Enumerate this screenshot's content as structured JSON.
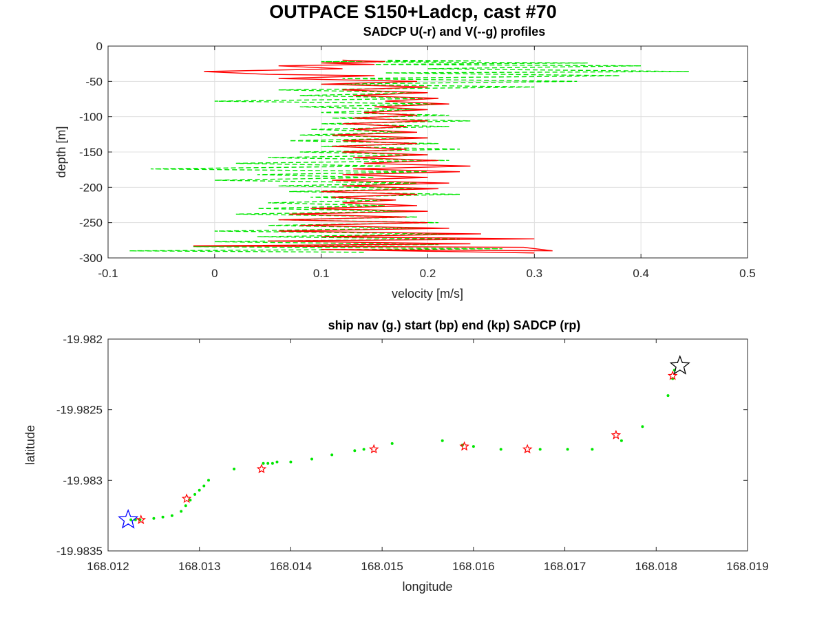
{
  "figure": {
    "title": "OUTPACE S150+Ladcp, cast #70"
  },
  "chart_data": [
    {
      "type": "line",
      "title": "SADCP U(-r) and V(--g) profiles",
      "xlabel": "velocity [m/s]",
      "ylabel": "depth [m]",
      "xlim": [
        -0.1,
        0.5
      ],
      "ylim": [
        -300,
        0
      ],
      "xticks": [
        "-0.1",
        "0",
        "0.1",
        "0.2",
        "0.3",
        "0.4",
        "0.5"
      ],
      "yticks": [
        "0",
        "-50",
        "-100",
        "-150",
        "-200",
        "-250",
        "-300"
      ],
      "grid": true,
      "series": [
        {
          "key": "U",
          "color": "#ff0000",
          "style": "solid",
          "points": [
            [
              0.3,
              -293
            ],
            [
              0.1,
              -288
            ],
            [
              0.317,
              -290
            ],
            [
              0.29,
              -285
            ],
            [
              -0.02,
              -283
            ],
            [
              0.24,
              -280
            ],
            [
              0.05,
              -276
            ],
            [
              0.3,
              -273
            ],
            [
              0.1,
              -270
            ],
            [
              0.25,
              -266
            ],
            [
              0.06,
              -262
            ],
            [
              0.22,
              -258
            ],
            [
              0.08,
              -254
            ],
            [
              0.2,
              -250
            ],
            [
              0.06,
              -246
            ],
            [
              0.18,
              -242
            ],
            [
              0.07,
              -238
            ],
            [
              0.2,
              -234
            ],
            [
              0.09,
              -230
            ],
            [
              0.19,
              -226
            ],
            [
              0.12,
              -222
            ],
            [
              0.17,
              -218
            ],
            [
              0.11,
              -214
            ],
            [
              0.19,
              -210
            ],
            [
              0.1,
              -206
            ],
            [
              0.21,
              -202
            ],
            [
              0.12,
              -198
            ],
            [
              0.22,
              -194
            ],
            [
              0.11,
              -190
            ],
            [
              0.2,
              -186
            ],
            [
              0.12,
              -182
            ],
            [
              0.23,
              -178
            ],
            [
              0.13,
              -174
            ],
            [
              0.24,
              -170
            ],
            [
              0.14,
              -166
            ],
            [
              0.21,
              -162
            ],
            [
              0.13,
              -158
            ],
            [
              0.2,
              -154
            ],
            [
              0.12,
              -150
            ],
            [
              0.18,
              -146
            ],
            [
              0.11,
              -142
            ],
            [
              0.19,
              -138
            ],
            [
              0.12,
              -134
            ],
            [
              0.2,
              -130
            ],
            [
              0.11,
              -126
            ],
            [
              0.19,
              -122
            ],
            [
              0.13,
              -118
            ],
            [
              0.18,
              -114
            ],
            [
              0.12,
              -110
            ],
            [
              0.2,
              -106
            ],
            [
              0.13,
              -102
            ],
            [
              0.19,
              -98
            ],
            [
              0.14,
              -94
            ],
            [
              0.2,
              -90
            ],
            [
              0.15,
              -86
            ],
            [
              0.22,
              -82
            ],
            [
              0.16,
              -78
            ],
            [
              0.21,
              -74
            ],
            [
              0.13,
              -70
            ],
            [
              0.2,
              -66
            ],
            [
              0.12,
              -62
            ],
            [
              0.2,
              -58
            ],
            [
              0.1,
              -54
            ],
            [
              0.19,
              -50
            ],
            [
              0.06,
              -46
            ],
            [
              0.15,
              -42
            ],
            [
              0.05,
              -40
            ],
            [
              -0.01,
              -36
            ],
            [
              0.12,
              -32
            ],
            [
              0.06,
              -28
            ],
            [
              0.15,
              -26
            ],
            [
              0.1,
              -24
            ],
            [
              0.16,
              -22
            ],
            [
              0.12,
              -20
            ]
          ]
        },
        {
          "key": "V",
          "color": "#00e600",
          "style": "dashed",
          "points": [
            [
              0.14,
              -292
            ],
            [
              -0.08,
              -290
            ],
            [
              0.27,
              -287
            ],
            [
              -0.02,
              -284
            ],
            [
              0.21,
              -281
            ],
            [
              0.0,
              -277
            ],
            [
              0.23,
              -273
            ],
            [
              0.04,
              -270
            ],
            [
              0.22,
              -266
            ],
            [
              0.0,
              -262
            ],
            [
              0.2,
              -258
            ],
            [
              0.05,
              -254
            ],
            [
              0.21,
              -250
            ],
            [
              0.06,
              -246
            ],
            [
              0.19,
              -242
            ],
            [
              0.02,
              -238
            ],
            [
              0.18,
              -234
            ],
            [
              0.04,
              -230
            ],
            [
              0.16,
              -226
            ],
            [
              0.05,
              -222
            ],
            [
              0.17,
              -218
            ],
            [
              0.09,
              -214
            ],
            [
              0.23,
              -210
            ],
            [
              0.07,
              -206
            ],
            [
              0.2,
              -202
            ],
            [
              0.06,
              -198
            ],
            [
              0.19,
              -194
            ],
            [
              0.0,
              -190
            ],
            [
              0.15,
              -186
            ],
            [
              0.04,
              -182
            ],
            [
              0.2,
              -178
            ],
            [
              -0.06,
              -174
            ],
            [
              0.16,
              -170
            ],
            [
              0.02,
              -166
            ],
            [
              0.22,
              -162
            ],
            [
              0.05,
              -158
            ],
            [
              0.2,
              -154
            ],
            [
              0.08,
              -150
            ],
            [
              0.23,
              -146
            ],
            [
              0.1,
              -142
            ],
            [
              0.21,
              -138
            ],
            [
              0.07,
              -134
            ],
            [
              0.2,
              -130
            ],
            [
              0.08,
              -126
            ],
            [
              0.18,
              -122
            ],
            [
              0.09,
              -118
            ],
            [
              0.22,
              -114
            ],
            [
              0.1,
              -110
            ],
            [
              0.24,
              -106
            ],
            [
              0.11,
              -102
            ],
            [
              0.22,
              -98
            ],
            [
              0.1,
              -94
            ],
            [
              0.19,
              -90
            ],
            [
              0.08,
              -86
            ],
            [
              0.22,
              -82
            ],
            [
              0.0,
              -78
            ],
            [
              0.21,
              -74
            ],
            [
              0.08,
              -70
            ],
            [
              0.2,
              -66
            ],
            [
              0.06,
              -62
            ],
            [
              0.3,
              -58
            ],
            [
              0.1,
              -54
            ],
            [
              0.34,
              -50
            ],
            [
              0.12,
              -46
            ],
            [
              0.38,
              -42
            ],
            [
              0.16,
              -38
            ],
            [
              0.445,
              -36
            ],
            [
              0.2,
              -32
            ],
            [
              0.4,
              -28
            ],
            [
              0.15,
              -26
            ],
            [
              0.35,
              -24
            ],
            [
              0.1,
              -22
            ],
            [
              0.25,
              -21
            ],
            [
              0.16,
              -20
            ]
          ]
        }
      ]
    },
    {
      "type": "scatter",
      "title": "ship nav (g.) start (bp) end (kp) SADCP (rp)",
      "xlabel": "longitude",
      "ylabel": "latitude",
      "xlim": [
        168.012,
        168.019
      ],
      "ylim": [
        -19.9835,
        -19.982
      ],
      "xticks": [
        "168.012",
        "168.013",
        "168.014",
        "168.015",
        "168.016",
        "168.017",
        "168.018",
        "168.019"
      ],
      "yticks": [
        "-19.982",
        "-19.9825",
        "-19.983",
        "-19.9835"
      ],
      "grid": false,
      "ship_nav": {
        "color": "#00e600",
        "points": [
          [
            168.01225,
            -19.98328
          ],
          [
            168.0123,
            -19.98328
          ],
          [
            168.01235,
            -19.98328
          ],
          [
            168.0125,
            -19.98327
          ],
          [
            168.0126,
            -19.98326
          ],
          [
            168.0127,
            -19.98325
          ],
          [
            168.0128,
            -19.98322
          ],
          [
            168.01285,
            -19.98318
          ],
          [
            168.0129,
            -19.98314
          ],
          [
            168.01295,
            -19.9831
          ],
          [
            168.013,
            -19.98307
          ],
          [
            168.01305,
            -19.98304
          ],
          [
            168.0131,
            -19.983
          ],
          [
            168.01338,
            -19.98292
          ],
          [
            168.0137,
            -19.98288
          ],
          [
            168.01375,
            -19.98288
          ],
          [
            168.0138,
            -19.98288
          ],
          [
            168.01385,
            -19.98287
          ],
          [
            168.014,
            -19.98287
          ],
          [
            168.01423,
            -19.98285
          ],
          [
            168.01445,
            -19.98282
          ],
          [
            168.0147,
            -19.98279
          ],
          [
            168.0148,
            -19.98278
          ],
          [
            168.01511,
            -19.98274
          ],
          [
            168.01566,
            -19.98272
          ],
          [
            168.01588,
            -19.98275
          ],
          [
            168.016,
            -19.98276
          ],
          [
            168.0163,
            -19.98278
          ],
          [
            168.01673,
            -19.98278
          ],
          [
            168.01703,
            -19.98278
          ],
          [
            168.0173,
            -19.98278
          ],
          [
            168.01762,
            -19.98272
          ],
          [
            168.01785,
            -19.98262
          ],
          [
            168.01813,
            -19.9824
          ],
          [
            168.01818,
            -19.98228
          ],
          [
            168.0182,
            -19.98222
          ]
        ]
      },
      "sadcp": {
        "color": "#ff0000",
        "points": [
          [
            168.01236,
            -19.98328
          ],
          [
            168.01286,
            -19.98313
          ],
          [
            168.01368,
            -19.98292
          ],
          [
            168.01491,
            -19.98278
          ],
          [
            168.0159,
            -19.98276
          ],
          [
            168.01659,
            -19.98278
          ],
          [
            168.01756,
            -19.98268
          ],
          [
            168.01818,
            -19.98226
          ]
        ]
      },
      "start": {
        "color": "#0000ff",
        "point": [
          168.01222,
          -19.98328
        ]
      },
      "end": {
        "color": "#000000",
        "point": [
          168.01826,
          -19.98219
        ]
      }
    }
  ]
}
